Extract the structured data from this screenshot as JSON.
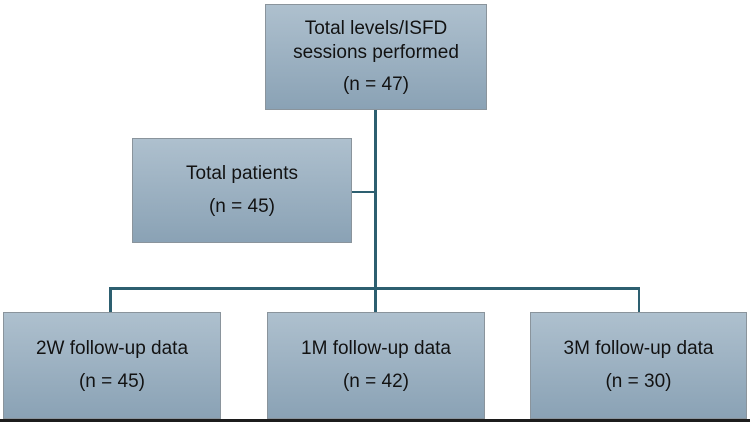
{
  "colors": {
    "box_fill_top": "#aec0ce",
    "box_fill_bottom": "#8aa2b5",
    "box_border": "#8a949c",
    "connector": "#2d5f70",
    "text": "#121212",
    "bottom_rule": "#1c1c1c",
    "background": "#ffffff"
  },
  "diagram": {
    "type": "flowchart",
    "nodes": [
      {
        "id": "total-sessions",
        "label": "Total levels/ISFD sessions performed",
        "n": "(n = 47)"
      },
      {
        "id": "total-patients",
        "label": "Total patients",
        "n": "(n = 45)"
      },
      {
        "id": "fu-2w",
        "label": "2W follow-up data",
        "n": "(n = 45)"
      },
      {
        "id": "fu-1m",
        "label": "1M follow-up data",
        "n": "(n = 42)"
      },
      {
        "id": "fu-3m",
        "label": "3M follow-up data",
        "n": "(n = 30)"
      }
    ],
    "edges": [
      {
        "from": "total-sessions",
        "to": "total-patients"
      },
      {
        "from": "total-sessions",
        "to": "fu-2w"
      },
      {
        "from": "total-sessions",
        "to": "fu-1m"
      },
      {
        "from": "total-sessions",
        "to": "fu-3m"
      }
    ]
  }
}
